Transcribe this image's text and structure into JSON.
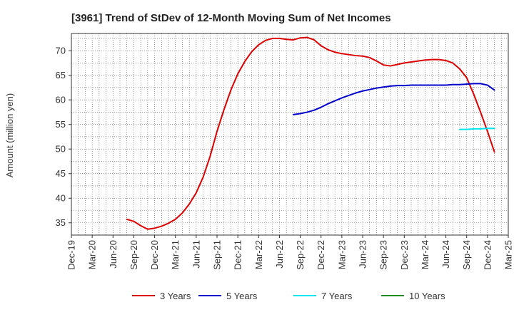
{
  "chart_data": {
    "type": "line",
    "title": "[3961]  Trend of StDev of 12-Month Moving Sum of Net Incomes",
    "xlabel": "",
    "ylabel": "Amount (million yen)",
    "x_ticks": [
      "Dec-19",
      "Mar-20",
      "Jun-20",
      "Sep-20",
      "Dec-20",
      "Mar-21",
      "Jun-21",
      "Sep-21",
      "Dec-21",
      "Mar-22",
      "Jun-22",
      "Sep-22",
      "Dec-22",
      "Mar-23",
      "Jun-23",
      "Sep-23",
      "Dec-23",
      "Mar-24",
      "Jun-24",
      "Sep-24",
      "Dec-24",
      "Mar-25"
    ],
    "y_ticks": [
      35,
      40,
      45,
      50,
      55,
      60,
      65,
      70
    ],
    "ylim": [
      32.5,
      73.5
    ],
    "grid": true,
    "legend_position": "bottom",
    "series": [
      {
        "name": "3 Years",
        "color": "#dd0000",
        "points": [
          [
            "Aug-20",
            35.7
          ],
          [
            "Sep-20",
            35.3
          ],
          [
            "Oct-20",
            34.4
          ],
          [
            "Nov-20",
            33.7
          ],
          [
            "Dec-20",
            33.9
          ],
          [
            "Jan-21",
            34.3
          ],
          [
            "Feb-21",
            34.9
          ],
          [
            "Mar-21",
            35.7
          ],
          [
            "Apr-21",
            37.0
          ],
          [
            "May-21",
            38.8
          ],
          [
            "Jun-21",
            41.1
          ],
          [
            "Jul-21",
            44.3
          ],
          [
            "Aug-21",
            48.5
          ],
          [
            "Sep-21",
            53.6
          ],
          [
            "Oct-21",
            58.0
          ],
          [
            "Nov-21",
            62.0
          ],
          [
            "Dec-21",
            65.3
          ],
          [
            "Jan-22",
            67.8
          ],
          [
            "Feb-22",
            69.8
          ],
          [
            "Mar-22",
            71.2
          ],
          [
            "Apr-22",
            72.1
          ],
          [
            "May-22",
            72.5
          ],
          [
            "Jun-22",
            72.5
          ],
          [
            "Jul-22",
            72.3
          ],
          [
            "Aug-22",
            72.2
          ],
          [
            "Sep-22",
            72.6
          ],
          [
            "Oct-22",
            72.7
          ],
          [
            "Nov-22",
            72.2
          ],
          [
            "Dec-22",
            71.0
          ],
          [
            "Jan-23",
            70.2
          ],
          [
            "Feb-23",
            69.7
          ],
          [
            "Mar-23",
            69.4
          ],
          [
            "Apr-23",
            69.2
          ],
          [
            "May-23",
            69.0
          ],
          [
            "Jun-23",
            68.9
          ],
          [
            "Jul-23",
            68.6
          ],
          [
            "Aug-23",
            67.9
          ],
          [
            "Sep-23",
            67.1
          ],
          [
            "Oct-23",
            66.9
          ],
          [
            "Nov-23",
            67.2
          ],
          [
            "Dec-23",
            67.5
          ],
          [
            "Jan-24",
            67.7
          ],
          [
            "Feb-24",
            67.9
          ],
          [
            "Mar-24",
            68.1
          ],
          [
            "Apr-24",
            68.2
          ],
          [
            "May-24",
            68.2
          ],
          [
            "Jun-24",
            68.0
          ],
          [
            "Jul-24",
            67.5
          ],
          [
            "Aug-24",
            66.3
          ],
          [
            "Sep-24",
            64.5
          ],
          [
            "Oct-24",
            61.2
          ],
          [
            "Nov-24",
            57.5
          ],
          [
            "Dec-24",
            53.6
          ],
          [
            "Jan-25",
            49.4
          ]
        ]
      },
      {
        "name": "5 Years",
        "color": "#0000cc",
        "points": [
          [
            "Aug-22",
            57.0
          ],
          [
            "Sep-22",
            57.2
          ],
          [
            "Oct-22",
            57.5
          ],
          [
            "Nov-22",
            57.9
          ],
          [
            "Dec-22",
            58.5
          ],
          [
            "Jan-23",
            59.2
          ],
          [
            "Feb-23",
            59.8
          ],
          [
            "Mar-23",
            60.4
          ],
          [
            "Apr-23",
            60.9
          ],
          [
            "May-23",
            61.4
          ],
          [
            "Jun-23",
            61.8
          ],
          [
            "Jul-23",
            62.1
          ],
          [
            "Aug-23",
            62.4
          ],
          [
            "Sep-23",
            62.6
          ],
          [
            "Oct-23",
            62.8
          ],
          [
            "Nov-23",
            62.9
          ],
          [
            "Dec-23",
            62.9
          ],
          [
            "Jan-24",
            63.0
          ],
          [
            "Feb-24",
            63.0
          ],
          [
            "Mar-24",
            63.0
          ],
          [
            "Apr-24",
            63.0
          ],
          [
            "May-24",
            63.0
          ],
          [
            "Jun-24",
            63.0
          ],
          [
            "Jul-24",
            63.1
          ],
          [
            "Aug-24",
            63.1
          ],
          [
            "Sep-24",
            63.2
          ],
          [
            "Oct-24",
            63.3
          ],
          [
            "Nov-24",
            63.3
          ],
          [
            "Dec-24",
            63.0
          ],
          [
            "Jan-25",
            62.0
          ]
        ]
      },
      {
        "name": "7 Years",
        "color": "#00e5ee",
        "points": [
          [
            "Aug-24",
            54.0
          ],
          [
            "Sep-24",
            54.0
          ],
          [
            "Oct-24",
            54.1
          ],
          [
            "Nov-24",
            54.1
          ],
          [
            "Dec-24",
            54.2
          ],
          [
            "Jan-25",
            54.2
          ]
        ]
      },
      {
        "name": "10 Years",
        "color": "#228b22",
        "points": []
      }
    ]
  }
}
